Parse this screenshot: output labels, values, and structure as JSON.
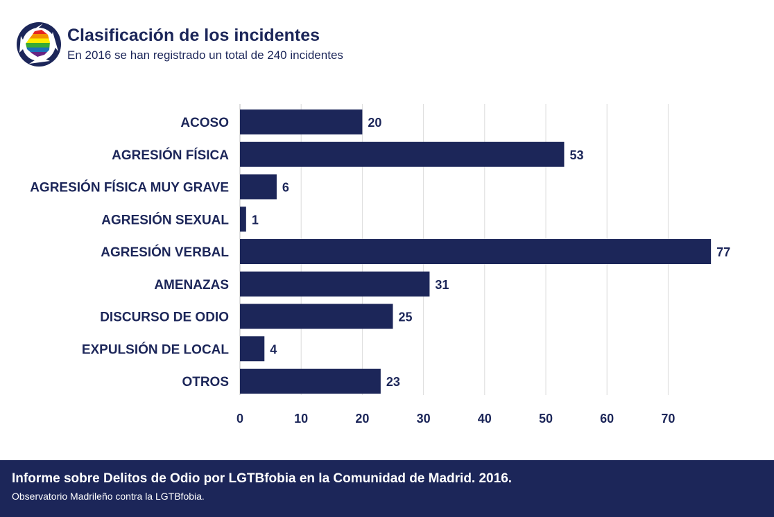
{
  "header": {
    "title": "Clasificación de los incidentes",
    "subtitle": "En 2016 se han registrado un total de 240 incidentes"
  },
  "chart_data": {
    "type": "bar",
    "orientation": "horizontal",
    "categories": [
      "ACOSO",
      "AGRESIÓN FÍSICA",
      "AGRESIÓN FÍSICA MUY GRAVE",
      "AGRESIÓN SEXUAL",
      "AGRESIÓN VERBAL",
      "AMENAZAS",
      "DISCURSO DE ODIO",
      "EXPULSIÓN DE LOCAL",
      "OTROS"
    ],
    "values": [
      20,
      53,
      6,
      1,
      77,
      31,
      25,
      4,
      23
    ],
    "xlim": [
      0,
      80
    ],
    "xticks": [
      0,
      10,
      20,
      30,
      40,
      50,
      60,
      70
    ],
    "grid": "vertical",
    "bar_color": "#1c2659",
    "data_labels": true
  },
  "footer": {
    "title": "Informe sobre Delitos de Odio por LGTBfobia en la Comunidad de Madrid. 2016.",
    "subtitle": "Observatorio Madrileño contra la LGTBfobia."
  },
  "colors": {
    "primary": "#1c2659",
    "grid": "#dcdcdc",
    "rainbow": [
      "#e52421",
      "#f39200",
      "#ffed00",
      "#3aaa35",
      "#1d71b8",
      "#662483"
    ]
  }
}
